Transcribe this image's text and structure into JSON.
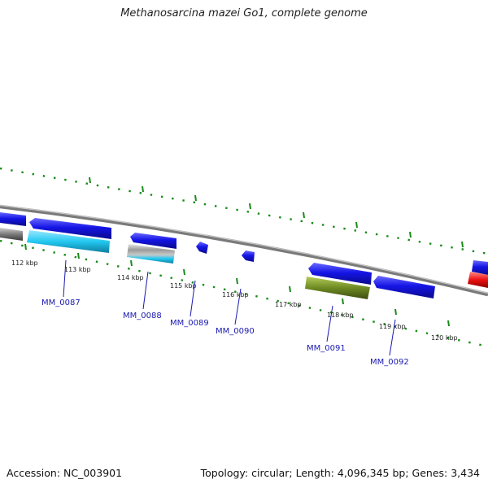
{
  "title": "Methanosarcina mazei Go1, complete genome",
  "footer": {
    "accession": "Accession: NC_003901",
    "stats": "Topology: circular; Length: 4,096,345 bp; Genes: 3,434"
  },
  "ticks": [
    "112 kbp",
    "113 kbp",
    "114 kbp",
    "115 kbp",
    "116 kbp",
    "117 kbp",
    "118 kbp",
    "119 kbp",
    "120 kbp"
  ],
  "genes": [
    {
      "id": "MM_0087"
    },
    {
      "id": "MM_0088"
    },
    {
      "id": "MM_0089"
    },
    {
      "id": "MM_0090"
    },
    {
      "id": "MM_0091"
    },
    {
      "id": "MM_0092"
    }
  ],
  "colors": {
    "backbone": "#8a8a8a",
    "gene": "#1515e6",
    "cds_cyan": "#22c8f0",
    "cds_olive": "#6e8a22",
    "cds_red": "#ee1111",
    "cds_gray": "#7a7a7a",
    "gc_dots": "#1a8a1a",
    "label": "#1a1ab0"
  }
}
